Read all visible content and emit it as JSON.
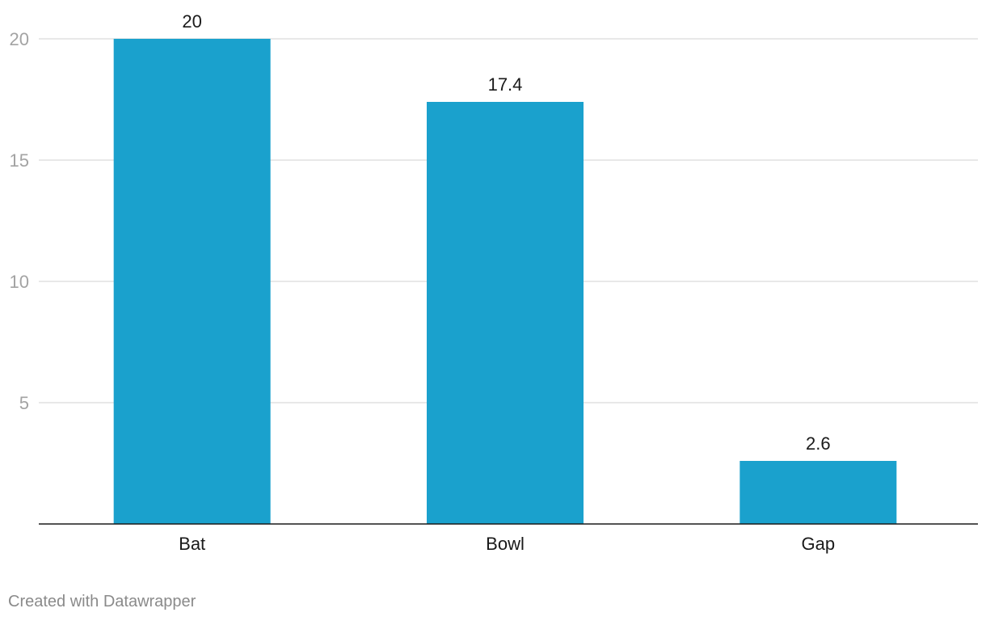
{
  "chart_data": {
    "type": "bar",
    "categories": [
      "Bat",
      "Bowl",
      "Gap"
    ],
    "values": [
      20,
      17.4,
      2.6
    ],
    "value_labels": [
      "20",
      "17.4",
      "2.6"
    ],
    "yticks": [
      5,
      10,
      15,
      20
    ],
    "ylim": [
      0,
      20
    ],
    "title": "",
    "xlabel": "",
    "ylabel": "",
    "grid": true,
    "bar_color": "#1aa1cd"
  },
  "footer": {
    "credit": "Created with Datawrapper"
  }
}
